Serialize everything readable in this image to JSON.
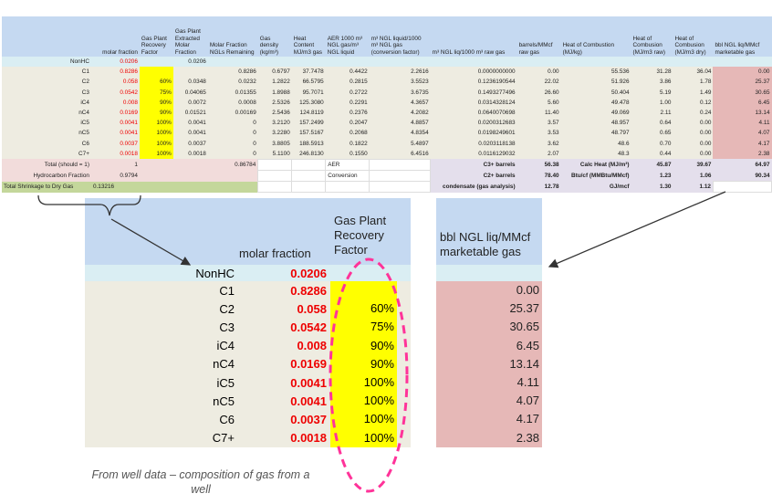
{
  "top_table": {
    "headers": [
      "",
      "molar fraction",
      "Gas Plant Recovery Factor",
      "Gas Plant Extracted Molar Fraction",
      "Molar Fraction NGLs Remaining",
      "Gas density (kg/m³)",
      "Heat Content MJ/m3 gas",
      "AER 1000 m³ NGL gas/m³ NGL liquid",
      "m³ NGL liquid/1000 m³ NGL gas (conversion factor)",
      "m³ NGL liq/1000 m³ raw gas",
      "barrels/MMcf raw gas",
      "Heat of Combustion (MJ/kg)",
      "Heat of Combusion (MJ/m3 raw)",
      "Heat of Combusion (MJ/m3 dry)",
      "bbl NGL liq/MMcf marketable gas"
    ],
    "nonhc": [
      "NonHC",
      "0.0206",
      "",
      "0.0206",
      "",
      "",
      "",
      "",
      "",
      "",
      "",
      "",
      "",
      "",
      ""
    ],
    "rows": [
      [
        "C1",
        "0.8286",
        "",
        "",
        "0.8286",
        "0.6797",
        "37.7478",
        "0.4422",
        "2.2616",
        "0.0000000000",
        "0.00",
        "55.536",
        "31.28",
        "36.04",
        "0.00"
      ],
      [
        "C2",
        "0.058",
        "60%",
        "0.0348",
        "0.0232",
        "1.2822",
        "66.5795",
        "0.2815",
        "3.5523",
        "0.1236190544",
        "22.02",
        "51.926",
        "3.86",
        "1.78",
        "25.37"
      ],
      [
        "C3",
        "0.0542",
        "75%",
        "0.04065",
        "0.01355",
        "1.8988",
        "95.7071",
        "0.2722",
        "3.6735",
        "0.1493277496",
        "26.60",
        "50.404",
        "5.19",
        "1.49",
        "30.65"
      ],
      [
        "iC4",
        "0.008",
        "90%",
        "0.0072",
        "0.0008",
        "2.5326",
        "125.3080",
        "0.2291",
        "4.3657",
        "0.0314328124",
        "5.60",
        "49.478",
        "1.00",
        "0.12",
        "6.45"
      ],
      [
        "nC4",
        "0.0169",
        "90%",
        "0.01521",
        "0.00169",
        "2.5436",
        "124.8119",
        "0.2376",
        "4.2082",
        "0.0640070698",
        "11.40",
        "49.069",
        "2.11",
        "0.24",
        "13.14"
      ],
      [
        "iC5",
        "0.0041",
        "100%",
        "0.0041",
        "0",
        "3.2120",
        "157.2499",
        "0.2047",
        "4.8857",
        "0.0200312683",
        "3.57",
        "48.957",
        "0.64",
        "0.00",
        "4.11"
      ],
      [
        "nC5",
        "0.0041",
        "100%",
        "0.0041",
        "0",
        "3.2280",
        "157.5167",
        "0.2068",
        "4.8354",
        "0.0198249601",
        "3.53",
        "48.797",
        "0.65",
        "0.00",
        "4.07"
      ],
      [
        "C6",
        "0.0037",
        "100%",
        "0.0037",
        "0",
        "3.8805",
        "188.5913",
        "0.1822",
        "5.4897",
        "0.0203118138",
        "3.62",
        "48.6",
        "0.70",
        "0.00",
        "4.17"
      ],
      [
        "C7+",
        "0.0018",
        "100%",
        "0.0018",
        "0",
        "5.1100",
        "246.8130",
        "0.1550",
        "6.4516",
        "0.0116129032",
        "2.07",
        "48.3",
        "0.44",
        "0.00",
        "2.38"
      ]
    ],
    "summary": [
      {
        "label": "Total (should = 1)",
        "value": "1",
        "remaining": "0.86784",
        "aer": "AER",
        "right_label": "C3+ barrels",
        "right_value": "56.38",
        "heat_label": "Calc Heat (MJ/m³)",
        "raw": "45.87",
        "dry": "39.67",
        "bbl": "64.97"
      },
      {
        "label": "Hydrocarbon Fraction",
        "value": "0.9794",
        "remaining": "",
        "aer": "Conversion",
        "right_label": "C2+ barrels",
        "right_value": "78.40",
        "heat_label": "Btu/cf (MMBtu/MMcf)",
        "raw": "1.23",
        "dry": "1.06",
        "bbl": "90.34"
      },
      {
        "label": "Total Shrinkage to Dry Gas",
        "value": "0.13216",
        "remaining": "",
        "aer": "",
        "right_label": "condensate (gas analysis)",
        "right_value": "12.78",
        "heat_label": "GJ/mcf",
        "raw": "1.30",
        "dry": "1.12",
        "bbl": ""
      }
    ]
  },
  "zoom_left": {
    "headers": {
      "molar": "molar fraction",
      "recovery": "Gas Plant Recovery Factor"
    },
    "rows": [
      {
        "label": "NonHC",
        "molar": "0.0206",
        "recovery": ""
      },
      {
        "label": "C1",
        "molar": "0.8286",
        "recovery": ""
      },
      {
        "label": "C2",
        "molar": "0.058",
        "recovery": "60%"
      },
      {
        "label": "C3",
        "molar": "0.0542",
        "recovery": "75%"
      },
      {
        "label": "iC4",
        "molar": "0.008",
        "recovery": "90%"
      },
      {
        "label": "nC4",
        "molar": "0.0169",
        "recovery": "90%"
      },
      {
        "label": "iC5",
        "molar": "0.0041",
        "recovery": "100%"
      },
      {
        "label": "nC5",
        "molar": "0.0041",
        "recovery": "100%"
      },
      {
        "label": "C6",
        "molar": "0.0037",
        "recovery": "100%"
      },
      {
        "label": "C7+",
        "molar": "0.0018",
        "recovery": "100%"
      }
    ]
  },
  "zoom_right": {
    "header": "bbl NGL liq/MMcf marketable gas",
    "values": [
      "0.00",
      "25.37",
      "30.65",
      "6.45",
      "13.14",
      "4.11",
      "4.07",
      "4.17",
      "2.38"
    ]
  },
  "caption": "From well data – composition of gas from a well",
  "colors": {
    "header": "#c5d9f1",
    "nonhc": "#daeef3",
    "body": "#eeece1",
    "yellow": "#ffff00",
    "pink": "#e6b8b7",
    "red": "#ee0000",
    "ellipse": "#ff3399"
  }
}
